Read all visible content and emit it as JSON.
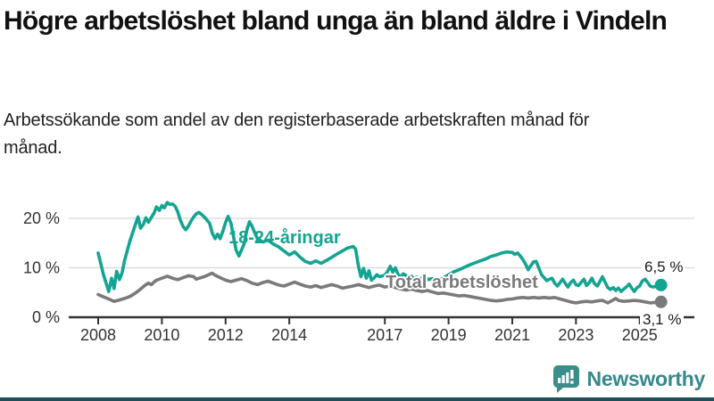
{
  "header": {
    "title": "Högre arbetslöshet bland unga än bland äldre i Vindeln",
    "subtitle": "Arbetssökande som andel av den registerbaserade arbetskraften månad för månad."
  },
  "chart_data": {
    "type": "line",
    "unit": "%",
    "grid": "horizontal",
    "x_axis": {
      "tick_years": [
        2008,
        2010,
        2012,
        2014,
        2017,
        2019,
        2021,
        2023,
        2025
      ],
      "range": [
        2007.1,
        2026.3
      ]
    },
    "y_axis": {
      "ticks": [
        {
          "value": 0,
          "label": "0 %"
        },
        {
          "value": 10,
          "label": "10 %"
        },
        {
          "value": 20,
          "label": "20 %"
        }
      ],
      "range": [
        0,
        26
      ]
    },
    "colors": {
      "young": "#14a492",
      "total": "#7a7a7a",
      "grid": "#d8d8d8",
      "axis": "#333333"
    },
    "series": [
      {
        "id": "young",
        "name": "18-24-åringar",
        "end_label": "6,5 %",
        "end_value": 6.5,
        "color": "#14a492",
        "points": [
          [
            2008.0,
            13.0
          ],
          [
            2008.17,
            8.5
          ],
          [
            2008.33,
            5.2
          ],
          [
            2008.42,
            7.9
          ],
          [
            2008.5,
            5.8
          ],
          [
            2008.58,
            9.3
          ],
          [
            2008.67,
            7.6
          ],
          [
            2008.75,
            9.0
          ],
          [
            2008.83,
            11.5
          ],
          [
            2009.0,
            15.5
          ],
          [
            2009.17,
            18.8
          ],
          [
            2009.25,
            20.3
          ],
          [
            2009.33,
            18.0
          ],
          [
            2009.42,
            18.8
          ],
          [
            2009.5,
            20.1
          ],
          [
            2009.58,
            19.2
          ],
          [
            2009.67,
            20.2
          ],
          [
            2009.75,
            21.0
          ],
          [
            2009.83,
            22.3
          ],
          [
            2009.92,
            21.6
          ],
          [
            2010.0,
            22.6
          ],
          [
            2010.08,
            22.1
          ],
          [
            2010.17,
            23.2
          ],
          [
            2010.25,
            22.8
          ],
          [
            2010.33,
            22.9
          ],
          [
            2010.42,
            22.4
          ],
          [
            2010.5,
            21.3
          ],
          [
            2010.58,
            19.6
          ],
          [
            2010.67,
            18.3
          ],
          [
            2010.75,
            17.7
          ],
          [
            2010.83,
            18.4
          ],
          [
            2010.92,
            19.5
          ],
          [
            2011.0,
            20.3
          ],
          [
            2011.08,
            20.9
          ],
          [
            2011.17,
            21.2
          ],
          [
            2011.33,
            20.3
          ],
          [
            2011.5,
            19.0
          ],
          [
            2011.58,
            17.0
          ],
          [
            2011.67,
            15.9
          ],
          [
            2011.75,
            16.8
          ],
          [
            2011.83,
            15.9
          ],
          [
            2011.92,
            17.5
          ],
          [
            2012.0,
            19.2
          ],
          [
            2012.08,
            20.4
          ],
          [
            2012.17,
            19.0
          ],
          [
            2012.25,
            16.2
          ],
          [
            2012.33,
            13.6
          ],
          [
            2012.42,
            12.4
          ],
          [
            2012.58,
            14.8
          ],
          [
            2012.67,
            17.7
          ],
          [
            2012.75,
            19.3
          ],
          [
            2012.83,
            18.4
          ],
          [
            2012.92,
            17.0
          ],
          [
            2013.0,
            15.9
          ],
          [
            2013.17,
            15.2
          ],
          [
            2013.33,
            15.6
          ],
          [
            2013.5,
            14.8
          ],
          [
            2013.67,
            14.2
          ],
          [
            2013.83,
            13.4
          ],
          [
            2014.0,
            12.6
          ],
          [
            2014.17,
            13.2
          ],
          [
            2014.33,
            12.2
          ],
          [
            2014.5,
            11.3
          ],
          [
            2014.67,
            10.9
          ],
          [
            2014.83,
            11.4
          ],
          [
            2015.0,
            10.9
          ],
          [
            2015.17,
            11.5
          ],
          [
            2015.33,
            12.1
          ],
          [
            2015.5,
            12.8
          ],
          [
            2015.67,
            13.4
          ],
          [
            2015.83,
            14.0
          ],
          [
            2016.0,
            14.3
          ],
          [
            2016.08,
            13.8
          ],
          [
            2016.17,
            10.4
          ],
          [
            2016.25,
            8.2
          ],
          [
            2016.33,
            9.9
          ],
          [
            2016.42,
            7.9
          ],
          [
            2016.5,
            9.4
          ],
          [
            2016.58,
            7.5
          ],
          [
            2016.67,
            8.0
          ],
          [
            2016.75,
            8.6
          ],
          [
            2016.83,
            8.2
          ],
          [
            2017.0,
            8.5
          ],
          [
            2017.08,
            9.2
          ],
          [
            2017.17,
            10.3
          ],
          [
            2017.25,
            9.1
          ],
          [
            2017.33,
            10.0
          ],
          [
            2017.42,
            8.6
          ],
          [
            2017.5,
            8.2
          ],
          [
            2017.58,
            8.8
          ],
          [
            2017.67,
            8.4
          ],
          [
            2017.75,
            7.8
          ],
          [
            2017.83,
            8.3
          ],
          [
            2017.92,
            7.7
          ],
          [
            2018.0,
            8.1
          ],
          [
            2018.08,
            7.5
          ],
          [
            2018.17,
            8.0
          ],
          [
            2018.25,
            8.7
          ],
          [
            2018.33,
            7.6
          ],
          [
            2018.5,
            7.8
          ],
          [
            2018.67,
            7.4
          ],
          [
            2018.83,
            7.9
          ],
          [
            2019.0,
            8.6
          ],
          [
            2019.17,
            9.2
          ],
          [
            2019.33,
            9.6
          ],
          [
            2019.5,
            10.1
          ],
          [
            2019.67,
            10.6
          ],
          [
            2019.83,
            11.0
          ],
          [
            2020.0,
            11.4
          ],
          [
            2020.17,
            11.8
          ],
          [
            2020.33,
            12.3
          ],
          [
            2020.5,
            12.6
          ],
          [
            2020.67,
            13.0
          ],
          [
            2020.83,
            13.2
          ],
          [
            2021.0,
            13.1
          ],
          [
            2021.08,
            12.7
          ],
          [
            2021.17,
            13.0
          ],
          [
            2021.25,
            12.4
          ],
          [
            2021.33,
            11.7
          ],
          [
            2021.42,
            10.7
          ],
          [
            2021.5,
            9.6
          ],
          [
            2021.58,
            10.4
          ],
          [
            2021.67,
            11.2
          ],
          [
            2021.75,
            11.3
          ],
          [
            2021.83,
            10.0
          ],
          [
            2021.92,
            8.6
          ],
          [
            2022.0,
            8.0
          ],
          [
            2022.08,
            7.4
          ],
          [
            2022.17,
            7.7
          ],
          [
            2022.25,
            7.9
          ],
          [
            2022.33,
            6.9
          ],
          [
            2022.42,
            6.3
          ],
          [
            2022.5,
            7.0
          ],
          [
            2022.58,
            7.7
          ],
          [
            2022.67,
            6.8
          ],
          [
            2022.75,
            6.1
          ],
          [
            2022.83,
            7.0
          ],
          [
            2022.92,
            7.5
          ],
          [
            2023.0,
            6.6
          ],
          [
            2023.08,
            6.4
          ],
          [
            2023.17,
            7.1
          ],
          [
            2023.25,
            7.7
          ],
          [
            2023.33,
            6.4
          ],
          [
            2023.42,
            7.0
          ],
          [
            2023.5,
            7.9
          ],
          [
            2023.58,
            6.8
          ],
          [
            2023.67,
            6.3
          ],
          [
            2023.75,
            7.2
          ],
          [
            2023.83,
            8.2
          ],
          [
            2023.92,
            7.0
          ],
          [
            2024.0,
            6.0
          ],
          [
            2024.08,
            5.6
          ],
          [
            2024.17,
            6.0
          ],
          [
            2024.25,
            5.4
          ],
          [
            2024.33,
            5.9
          ],
          [
            2024.42,
            5.2
          ],
          [
            2024.5,
            5.7
          ],
          [
            2024.58,
            6.1
          ],
          [
            2024.67,
            6.7
          ],
          [
            2024.75,
            5.9
          ],
          [
            2024.83,
            5.2
          ],
          [
            2024.92,
            6.0
          ],
          [
            2025.0,
            6.3
          ],
          [
            2025.08,
            7.3
          ],
          [
            2025.17,
            7.7
          ],
          [
            2025.25,
            7.0
          ],
          [
            2025.33,
            6.3
          ],
          [
            2025.42,
            6.1
          ],
          [
            2025.67,
            6.5
          ]
        ]
      },
      {
        "id": "total",
        "name": "Total arbetslöshet",
        "end_label": "3,1 %",
        "end_value": 3.1,
        "color": "#7a7a7a",
        "points": [
          [
            2008.0,
            4.6
          ],
          [
            2008.17,
            4.1
          ],
          [
            2008.33,
            3.7
          ],
          [
            2008.5,
            3.2
          ],
          [
            2008.67,
            3.5
          ],
          [
            2008.83,
            3.8
          ],
          [
            2009.0,
            4.2
          ],
          [
            2009.17,
            4.9
          ],
          [
            2009.33,
            5.7
          ],
          [
            2009.5,
            6.6
          ],
          [
            2009.58,
            6.9
          ],
          [
            2009.67,
            6.6
          ],
          [
            2009.75,
            7.1
          ],
          [
            2009.83,
            7.5
          ],
          [
            2010.0,
            7.9
          ],
          [
            2010.17,
            8.3
          ],
          [
            2010.33,
            7.9
          ],
          [
            2010.5,
            7.6
          ],
          [
            2010.67,
            8.0
          ],
          [
            2010.83,
            8.4
          ],
          [
            2011.0,
            8.2
          ],
          [
            2011.08,
            7.7
          ],
          [
            2011.17,
            7.9
          ],
          [
            2011.33,
            8.2
          ],
          [
            2011.5,
            8.7
          ],
          [
            2011.58,
            8.9
          ],
          [
            2011.67,
            8.5
          ],
          [
            2011.83,
            8.0
          ],
          [
            2012.0,
            7.5
          ],
          [
            2012.17,
            7.2
          ],
          [
            2012.33,
            7.5
          ],
          [
            2012.5,
            7.8
          ],
          [
            2012.67,
            7.4
          ],
          [
            2012.83,
            6.9
          ],
          [
            2013.0,
            6.6
          ],
          [
            2013.17,
            7.0
          ],
          [
            2013.33,
            7.3
          ],
          [
            2013.5,
            6.9
          ],
          [
            2013.67,
            6.5
          ],
          [
            2013.83,
            6.3
          ],
          [
            2014.0,
            6.7
          ],
          [
            2014.17,
            7.1
          ],
          [
            2014.33,
            6.7
          ],
          [
            2014.5,
            6.3
          ],
          [
            2014.67,
            6.1
          ],
          [
            2014.83,
            6.4
          ],
          [
            2015.0,
            6.0
          ],
          [
            2015.17,
            6.3
          ],
          [
            2015.33,
            6.6
          ],
          [
            2015.5,
            6.3
          ],
          [
            2015.67,
            5.9
          ],
          [
            2015.83,
            6.1
          ],
          [
            2016.0,
            6.3
          ],
          [
            2016.17,
            6.6
          ],
          [
            2016.33,
            6.3
          ],
          [
            2016.5,
            6.0
          ],
          [
            2016.67,
            6.3
          ],
          [
            2016.83,
            6.5
          ],
          [
            2017.0,
            6.1
          ],
          [
            2017.17,
            6.3
          ],
          [
            2017.33,
            6.0
          ],
          [
            2017.5,
            5.7
          ],
          [
            2017.67,
            5.5
          ],
          [
            2017.83,
            5.7
          ],
          [
            2018.0,
            5.4
          ],
          [
            2018.17,
            5.2
          ],
          [
            2018.33,
            5.4
          ],
          [
            2018.5,
            5.1
          ],
          [
            2018.67,
            4.8
          ],
          [
            2018.83,
            4.9
          ],
          [
            2019.0,
            4.7
          ],
          [
            2019.17,
            4.5
          ],
          [
            2019.33,
            4.3
          ],
          [
            2019.5,
            4.4
          ],
          [
            2019.67,
            4.2
          ],
          [
            2019.83,
            4.0
          ],
          [
            2020.0,
            3.8
          ],
          [
            2020.17,
            3.6
          ],
          [
            2020.33,
            3.4
          ],
          [
            2020.5,
            3.3
          ],
          [
            2020.67,
            3.4
          ],
          [
            2020.83,
            3.6
          ],
          [
            2021.0,
            3.7
          ],
          [
            2021.17,
            3.9
          ],
          [
            2021.33,
            4.0
          ],
          [
            2021.5,
            3.9
          ],
          [
            2021.67,
            4.0
          ],
          [
            2021.83,
            3.9
          ],
          [
            2022.0,
            4.0
          ],
          [
            2022.17,
            3.9
          ],
          [
            2022.33,
            4.0
          ],
          [
            2022.5,
            3.7
          ],
          [
            2022.67,
            3.4
          ],
          [
            2022.83,
            3.1
          ],
          [
            2023.0,
            2.9
          ],
          [
            2023.17,
            3.1
          ],
          [
            2023.33,
            3.2
          ],
          [
            2023.5,
            3.1
          ],
          [
            2023.67,
            3.3
          ],
          [
            2023.83,
            3.4
          ],
          [
            2024.0,
            2.9
          ],
          [
            2024.17,
            3.5
          ],
          [
            2024.25,
            3.8
          ],
          [
            2024.33,
            3.4
          ],
          [
            2024.5,
            3.2
          ],
          [
            2024.67,
            3.3
          ],
          [
            2024.83,
            3.4
          ],
          [
            2025.0,
            3.3
          ],
          [
            2025.17,
            3.1
          ],
          [
            2025.33,
            2.9
          ],
          [
            2025.67,
            3.1
          ]
        ]
      }
    ]
  },
  "branding": {
    "logo_text": "Newsworthy",
    "logo_color": "#35898c",
    "logo_icon": "bar-chart-speech-bubble-icon"
  }
}
